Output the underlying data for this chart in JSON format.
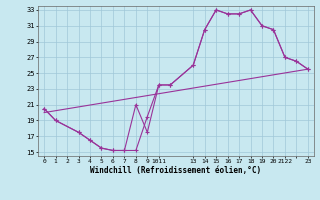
{
  "xlabel": "Windchill (Refroidissement éolien,°C)",
  "background_color": "#c8e8f0",
  "grid_color": "#a0c8d8",
  "line_color": "#993399",
  "xlim": [
    -0.5,
    23.5
  ],
  "ylim": [
    14.5,
    33.5
  ],
  "yticks": [
    15,
    17,
    19,
    21,
    23,
    25,
    27,
    29,
    31,
    33
  ],
  "xtick_positions": [
    0,
    1,
    2,
    3,
    4,
    5,
    6,
    7,
    8,
    9,
    10,
    13,
    14,
    15,
    16,
    17,
    18,
    19,
    20,
    21,
    22,
    23
  ],
  "xtick_labels": [
    "0",
    "1",
    "2",
    "3",
    "4",
    "5",
    "6",
    "7",
    "8",
    "9",
    "1011",
    "13",
    "14",
    "15",
    "16",
    "17",
    "18",
    "19",
    "20",
    "2122",
    "",
    "23"
  ],
  "line1_x": [
    0,
    1,
    3,
    4,
    5,
    6,
    7,
    8,
    9,
    10,
    11,
    13,
    14,
    15,
    16,
    17,
    18,
    19,
    20,
    21,
    22,
    23
  ],
  "line1_y": [
    20.5,
    19.0,
    17.5,
    16.5,
    15.5,
    15.2,
    15.2,
    15.2,
    19.5,
    23.5,
    23.5,
    26.0,
    30.5,
    33.0,
    32.5,
    32.5,
    33.0,
    31.0,
    30.5,
    27.0,
    26.5,
    25.5
  ],
  "line2_x": [
    0,
    1,
    3,
    4,
    5,
    6,
    7,
    8,
    9,
    10,
    11,
    13,
    14,
    15,
    16,
    17,
    18,
    19,
    20,
    21,
    22,
    23
  ],
  "line2_y": [
    20.5,
    19.0,
    17.5,
    16.5,
    15.5,
    15.2,
    15.2,
    21.0,
    17.5,
    23.5,
    23.5,
    26.0,
    30.5,
    33.0,
    32.5,
    32.5,
    33.0,
    31.0,
    30.5,
    27.0,
    26.5,
    25.5
  ],
  "line3_x": [
    0,
    23
  ],
  "line3_y": [
    20.0,
    25.5
  ]
}
